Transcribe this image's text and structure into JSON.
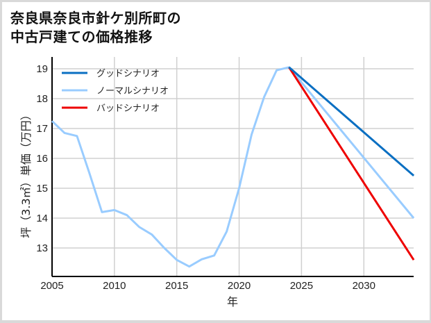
{
  "title_line1": "奈良県奈良市針ケ別所町の",
  "title_line2": "中古戸建ての価格推移",
  "chart_data": {
    "type": "line",
    "title": "奈良県奈良市針ケ別所町の中古戸建ての価格推移",
    "xlabel": "年",
    "ylabel": "坪（3.3㎡）単価（万円）",
    "xlim": [
      2005,
      2034
    ],
    "ylim": [
      12.1,
      19.3
    ],
    "x_ticks": [
      2005,
      2010,
      2015,
      2020,
      2025,
      2030
    ],
    "y_ticks": [
      13,
      14,
      15,
      16,
      17,
      18,
      19
    ],
    "grid": true,
    "legend_position": "upper left",
    "series": [
      {
        "name": "グッドシナリオ",
        "color": "#0a6fc2",
        "x": [
          2024,
          2034
        ],
        "values": [
          19.05,
          15.42
        ]
      },
      {
        "name": "ノーマルシナリオ",
        "color": "#99ccff",
        "x": [
          2005,
          2006,
          2007,
          2008,
          2009,
          2010,
          2011,
          2012,
          2013,
          2014,
          2015,
          2016,
          2017,
          2018,
          2019,
          2020,
          2021,
          2022,
          2023,
          2024,
          2034
        ],
        "values": [
          17.25,
          16.85,
          16.75,
          15.5,
          14.2,
          14.27,
          14.1,
          13.7,
          13.45,
          13.0,
          12.6,
          12.38,
          12.62,
          12.75,
          13.55,
          15.0,
          16.8,
          18.05,
          18.95,
          19.05,
          14.0
        ]
      },
      {
        "name": "バッドシナリオ",
        "color": "#ee0000",
        "x": [
          2024,
          2034
        ],
        "values": [
          19.05,
          12.6
        ]
      }
    ]
  }
}
